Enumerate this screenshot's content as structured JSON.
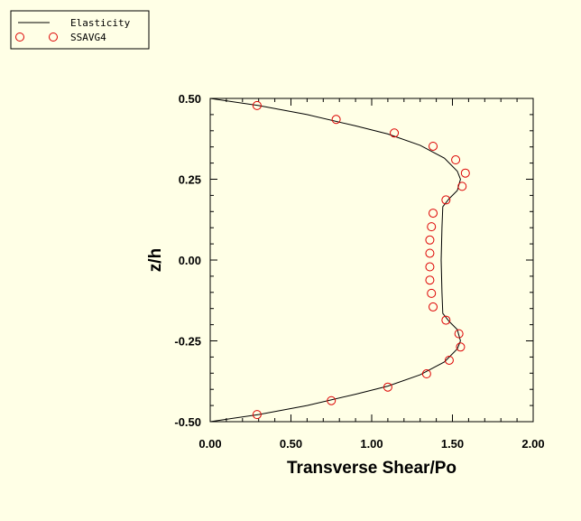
{
  "chart_data": {
    "type": "line",
    "xlabel": "Transverse Shear/Po",
    "ylabel": "z/h",
    "xlim": [
      0,
      2
    ],
    "ylim": [
      -0.5,
      0.5
    ],
    "x_ticks": [
      "0.00",
      "0.50",
      "1.00",
      "1.50",
      "2.00"
    ],
    "y_ticks": [
      "0.50",
      "0.25",
      "0.00",
      "-0.25",
      "-0.50"
    ],
    "legend_position": "top-left",
    "grid": false,
    "series": [
      {
        "name": "Elasticity",
        "style": "line",
        "color": "#000000",
        "points": [
          [
            0.0,
            -0.5
          ],
          [
            0.3,
            -0.478
          ],
          [
            0.6,
            -0.45
          ],
          [
            0.9,
            -0.415
          ],
          [
            1.1,
            -0.39
          ],
          [
            1.3,
            -0.355
          ],
          [
            1.45,
            -0.315
          ],
          [
            1.53,
            -0.275
          ],
          [
            1.55,
            -0.25
          ],
          [
            1.53,
            -0.215
          ],
          [
            1.48,
            -0.19
          ],
          [
            1.44,
            -0.165
          ],
          [
            1.435,
            -0.1
          ],
          [
            1.43,
            0.0
          ],
          [
            1.435,
            0.1
          ],
          [
            1.44,
            0.165
          ],
          [
            1.48,
            0.19
          ],
          [
            1.53,
            0.215
          ],
          [
            1.55,
            0.25
          ],
          [
            1.53,
            0.275
          ],
          [
            1.45,
            0.315
          ],
          [
            1.3,
            0.355
          ],
          [
            1.1,
            0.39
          ],
          [
            0.9,
            0.415
          ],
          [
            0.6,
            0.45
          ],
          [
            0.3,
            0.478
          ],
          [
            0.0,
            0.5
          ]
        ]
      },
      {
        "name": "SSAVG4",
        "style": "marker",
        "color": "#dd0000",
        "points": [
          [
            0.29,
            0.478
          ],
          [
            0.78,
            0.435
          ],
          [
            1.14,
            0.393
          ],
          [
            1.38,
            0.352
          ],
          [
            1.52,
            0.31
          ],
          [
            1.58,
            0.269
          ],
          [
            1.56,
            0.228
          ],
          [
            1.46,
            0.186
          ],
          [
            1.38,
            0.145
          ],
          [
            1.37,
            0.103
          ],
          [
            1.36,
            0.062
          ],
          [
            1.36,
            0.021
          ],
          [
            1.36,
            -0.021
          ],
          [
            1.36,
            -0.062
          ],
          [
            1.37,
            -0.103
          ],
          [
            1.38,
            -0.145
          ],
          [
            1.46,
            -0.186
          ],
          [
            1.54,
            -0.228
          ],
          [
            1.55,
            -0.269
          ],
          [
            1.48,
            -0.31
          ],
          [
            1.34,
            -0.352
          ],
          [
            1.1,
            -0.393
          ],
          [
            0.75,
            -0.435
          ],
          [
            0.29,
            -0.478
          ]
        ]
      }
    ]
  }
}
